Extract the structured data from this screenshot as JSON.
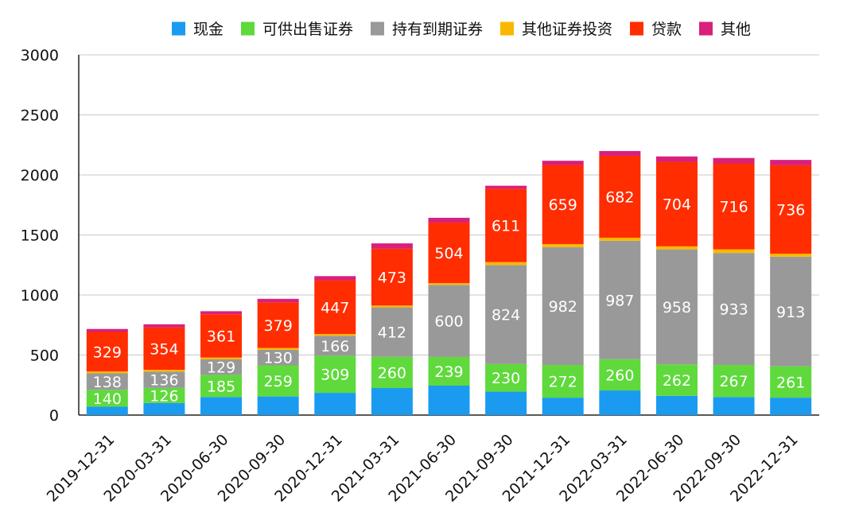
{
  "chart_data": {
    "type": "bar",
    "stacked": true,
    "title": "",
    "xlabel": "",
    "ylabel": "",
    "ylim": [
      0,
      3000
    ],
    "yticks": [
      0,
      500,
      1000,
      1500,
      2000,
      2500,
      3000
    ],
    "grid": true,
    "legend_position": "top",
    "categories": [
      "2019-12-31",
      "2020-03-31",
      "2020-06-30",
      "2020-09-30",
      "2020-12-31",
      "2021-03-31",
      "2021-06-30",
      "2021-09-30",
      "2021-12-31",
      "2022-03-31",
      "2022-06-30",
      "2022-09-30",
      "2022-12-31"
    ],
    "series": [
      {
        "name": "现金",
        "color": "#1a9bf0",
        "values": [
          70,
          100,
          150,
          155,
          185,
          225,
          245,
          195,
          145,
          205,
          160,
          150,
          145
        ],
        "labels": [
          "",
          "",
          "",
          "",
          "",
          "",
          "",
          "",
          "",
          "",
          "",
          "",
          ""
        ]
      },
      {
        "name": "可供出售证券",
        "color": "#5fd93c",
        "values": [
          140,
          126,
          185,
          259,
          309,
          260,
          239,
          230,
          272,
          260,
          262,
          267,
          261
        ],
        "labels": [
          "140",
          "126",
          "185",
          "259",
          "309",
          "260",
          "239",
          "230",
          "272",
          "260",
          "262",
          "267",
          "261"
        ]
      },
      {
        "name": "持有到期证券",
        "color": "#999999",
        "values": [
          138,
          136,
          129,
          130,
          166,
          412,
          600,
          824,
          982,
          987,
          958,
          933,
          913
        ],
        "labels": [
          "138",
          "136",
          "129",
          "130",
          "166",
          "412",
          "600",
          "824",
          "982",
          "987",
          "958",
          "933",
          "913"
        ]
      },
      {
        "name": "其他证券投资",
        "color": "#f9b800",
        "values": [
          15,
          15,
          15,
          15,
          15,
          15,
          15,
          25,
          25,
          25,
          25,
          30,
          25
        ],
        "labels": [
          "",
          "",
          "",
          "",
          "",
          "",
          "",
          "",
          "",
          "",
          "",
          "",
          ""
        ]
      },
      {
        "name": "贷款",
        "color": "#ff2d00",
        "values": [
          329,
          354,
          361,
          379,
          447,
          473,
          504,
          611,
          659,
          682,
          704,
          716,
          736
        ],
        "labels": [
          "329",
          "354",
          "361",
          "379",
          "447",
          "473",
          "504",
          "611",
          "659",
          "682",
          "704",
          "716",
          "736"
        ]
      },
      {
        "name": "其他",
        "color": "#d9207a",
        "values": [
          25,
          25,
          25,
          30,
          35,
          45,
          40,
          25,
          35,
          40,
          45,
          45,
          45
        ],
        "labels": [
          "",
          "",
          "",
          "",
          "",
          "",
          "",
          "",
          "",
          "",
          "",
          "",
          ""
        ]
      }
    ]
  }
}
